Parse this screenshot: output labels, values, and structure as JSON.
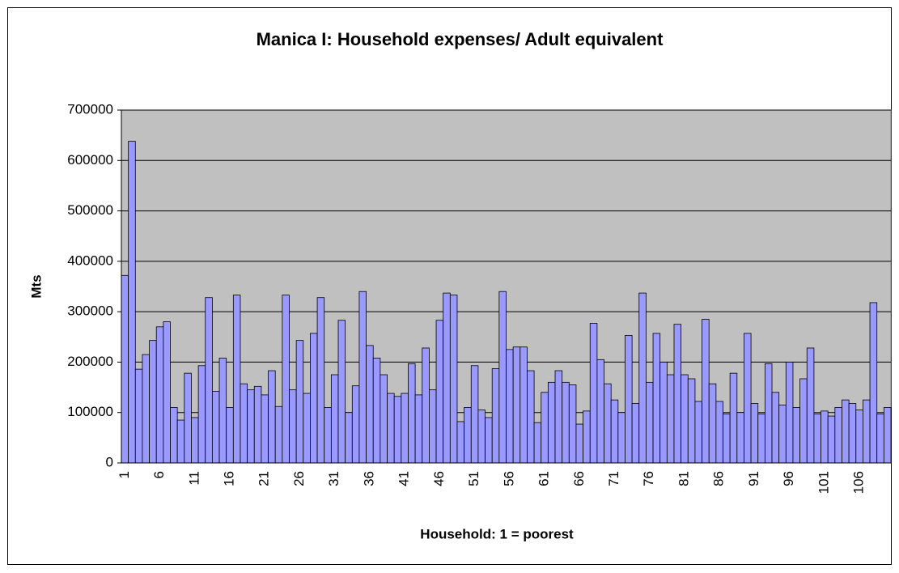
{
  "chart_data": {
    "type": "bar",
    "title": "Manica I: Household expenses/ Adult equivalent",
    "x_label": "Household: 1 = poorest",
    "y_label": "Mts",
    "color": "#9999ff",
    "categories": [
      "1",
      null,
      null,
      null,
      null,
      "6",
      null,
      null,
      null,
      null,
      "11",
      null,
      null,
      null,
      null,
      "16",
      null,
      null,
      null,
      null,
      "21",
      null,
      null,
      null,
      null,
      "26",
      null,
      null,
      null,
      null,
      "31",
      null,
      null,
      null,
      null,
      "36",
      null,
      null,
      null,
      null,
      "41",
      null,
      null,
      null,
      null,
      "46",
      null,
      null,
      null,
      null,
      "51",
      null,
      null,
      null,
      null,
      "56",
      null,
      null,
      null,
      null,
      "61",
      null,
      null,
      null,
      null,
      "66",
      null,
      null,
      null,
      null,
      "71",
      null,
      null,
      null,
      null,
      "76",
      null,
      null,
      null,
      null,
      "81",
      null,
      null,
      null,
      null,
      "86",
      null,
      null,
      null,
      null,
      "91",
      null,
      null,
      null,
      null,
      "96",
      null,
      null,
      null,
      null,
      "101",
      null,
      null,
      null,
      null,
      "106",
      null,
      null,
      null,
      null
    ],
    "values": [
      372000,
      638000,
      186000,
      215000,
      243000,
      270000,
      280000,
      110000,
      85000,
      178000,
      90000,
      193000,
      328000,
      142000,
      208000,
      110000,
      333000,
      157000,
      145000,
      152000,
      135000,
      183000,
      112000,
      333000,
      145000,
      243000,
      138000,
      257000,
      328000,
      110000,
      175000,
      283000,
      100000,
      153000,
      340000,
      233000,
      208000,
      175000,
      138000,
      132000,
      138000,
      197000,
      135000,
      228000,
      145000,
      283000,
      337000,
      333000,
      82000,
      110000,
      193000,
      105000,
      90000,
      187000,
      340000,
      225000,
      230000,
      230000,
      183000,
      80000,
      140000,
      160000,
      183000,
      160000,
      155000,
      77000,
      103000,
      277000,
      205000,
      157000,
      125000,
      100000,
      253000,
      118000,
      337000,
      160000,
      257000,
      200000,
      175000,
      275000,
      175000,
      167000,
      122000,
      285000,
      157000,
      122000,
      97000,
      178000,
      100000,
      257000,
      118000,
      97000,
      197000,
      140000,
      115000,
      200000,
      110000,
      167000,
      228000,
      97000,
      103000,
      93000,
      110000,
      125000,
      118000,
      105000,
      125000,
      318000,
      97000,
      110000
    ],
    "ylim": [
      0,
      700000
    ],
    "yticks": [
      0,
      100000,
      200000,
      300000,
      400000,
      500000,
      600000,
      700000
    ],
    "grid": true
  }
}
